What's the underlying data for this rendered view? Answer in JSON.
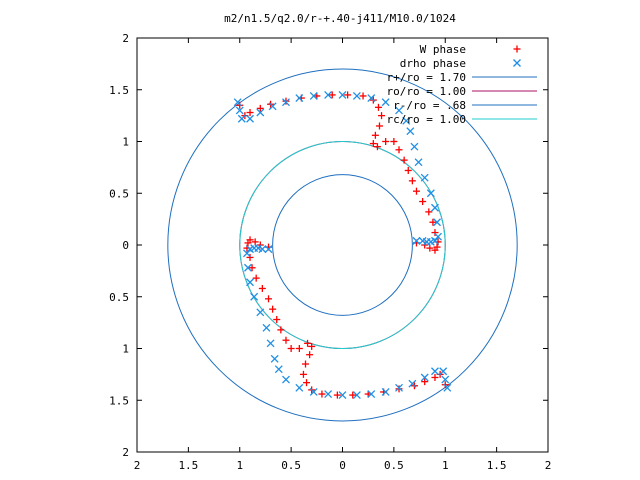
{
  "chart_data": {
    "type": "scatter",
    "title": "m2/n1.5/q2.0/r-+.40-j411/M10.0/1024",
    "xlabel": "",
    "ylabel": "",
    "xlim": [
      -2,
      2
    ],
    "ylim": [
      -2,
      2
    ],
    "x_ticks": [
      {
        "value": -2,
        "label": "2"
      },
      {
        "value": -1.5,
        "label": "1.5"
      },
      {
        "value": -1,
        "label": "1"
      },
      {
        "value": -0.5,
        "label": "0.5"
      },
      {
        "value": 0,
        "label": "0"
      },
      {
        "value": 0.5,
        "label": "0.5"
      },
      {
        "value": 1,
        "label": "1"
      },
      {
        "value": 1.5,
        "label": "1.5"
      },
      {
        "value": 2,
        "label": "2"
      }
    ],
    "y_ticks": [
      {
        "value": 2,
        "label": "2"
      },
      {
        "value": 1.5,
        "label": "1.5"
      },
      {
        "value": 1,
        "label": "1"
      },
      {
        "value": 0.5,
        "label": "0.5"
      },
      {
        "value": 0,
        "label": "0"
      },
      {
        "value": -0.5,
        "label": "0.5"
      },
      {
        "value": -1,
        "label": "1"
      },
      {
        "value": -1.5,
        "label": "1.5"
      },
      {
        "value": -2,
        "label": "2"
      }
    ],
    "grid": false,
    "legend_position": "top-right",
    "series": [
      {
        "name": "W phase",
        "kind": "points",
        "marker": "plus",
        "color": "#ff0000",
        "x": [
          -1.0,
          -0.95,
          -0.9,
          -0.8,
          -0.7,
          -0.55,
          -0.4,
          -0.25,
          -0.1,
          0.05,
          0.2,
          0.3,
          0.35,
          0.38,
          0.36,
          0.32,
          0.3,
          0.34,
          0.42,
          0.5,
          0.55,
          0.6,
          0.64,
          0.68,
          0.72,
          0.78,
          0.84,
          0.88,
          0.9,
          0.93,
          0.92,
          0.9,
          0.85,
          0.8,
          0.72,
          1.0,
          0.95,
          0.9,
          0.8,
          0.7,
          0.55,
          0.4,
          0.25,
          0.1,
          -0.05,
          -0.2,
          -0.3,
          -0.35,
          -0.38,
          -0.36,
          -0.32,
          -0.3,
          -0.34,
          -0.42,
          -0.5,
          -0.55,
          -0.6,
          -0.64,
          -0.68,
          -0.72,
          -0.78,
          -0.84,
          -0.88,
          -0.9,
          -0.93,
          -0.92,
          -0.9,
          -0.85,
          -0.8,
          -0.72
        ],
        "y": [
          1.35,
          1.25,
          1.28,
          1.32,
          1.36,
          1.39,
          1.42,
          1.44,
          1.45,
          1.45,
          1.44,
          1.4,
          1.33,
          1.25,
          1.15,
          1.06,
          0.98,
          0.95,
          1.0,
          1.0,
          0.92,
          0.82,
          0.72,
          0.62,
          0.52,
          0.42,
          0.32,
          0.22,
          0.12,
          0.03,
          -0.02,
          -0.05,
          -0.03,
          0.0,
          0.02,
          -1.35,
          -1.25,
          -1.28,
          -1.32,
          -1.36,
          -1.39,
          -1.42,
          -1.44,
          -1.45,
          -1.45,
          -1.44,
          -1.4,
          -1.33,
          -1.25,
          -1.15,
          -1.06,
          -0.98,
          -0.95,
          -1.0,
          -1.0,
          -0.92,
          -0.82,
          -0.72,
          -0.62,
          -0.52,
          -0.42,
          -0.32,
          -0.22,
          -0.12,
          -0.03,
          0.02,
          0.05,
          0.03,
          0.0,
          -0.02
        ]
      },
      {
        "name": "drho phase",
        "kind": "points",
        "marker": "cross",
        "color": "#1e8fe6",
        "x": [
          -1.02,
          -1.0,
          -0.98,
          -0.9,
          -0.8,
          -0.68,
          -0.55,
          -0.42,
          -0.28,
          -0.14,
          0.0,
          0.14,
          0.28,
          0.42,
          0.55,
          0.62,
          0.66,
          0.7,
          0.74,
          0.8,
          0.86,
          0.9,
          0.92,
          0.93,
          0.9,
          0.86,
          0.82,
          0.78,
          0.72,
          1.02,
          1.0,
          0.98,
          0.9,
          0.8,
          0.68,
          0.55,
          0.42,
          0.28,
          0.14,
          0.0,
          -0.14,
          -0.28,
          -0.42,
          -0.55,
          -0.62,
          -0.66,
          -0.7,
          -0.74,
          -0.8,
          -0.86,
          -0.9,
          -0.92,
          -0.93,
          -0.9,
          -0.86,
          -0.82,
          -0.78,
          -0.72
        ],
        "y": [
          1.38,
          1.3,
          1.22,
          1.22,
          1.28,
          1.34,
          1.38,
          1.42,
          1.44,
          1.45,
          1.45,
          1.44,
          1.42,
          1.38,
          1.3,
          1.2,
          1.1,
          0.95,
          0.8,
          0.65,
          0.5,
          0.36,
          0.22,
          0.08,
          0.04,
          0.03,
          0.03,
          0.04,
          0.04,
          -1.38,
          -1.3,
          -1.22,
          -1.22,
          -1.28,
          -1.34,
          -1.38,
          -1.42,
          -1.44,
          -1.45,
          -1.45,
          -1.44,
          -1.42,
          -1.38,
          -1.3,
          -1.2,
          -1.1,
          -0.95,
          -0.8,
          -0.65,
          -0.5,
          -0.36,
          -0.22,
          -0.08,
          -0.04,
          -0.03,
          -0.03,
          -0.04,
          -0.04
        ]
      },
      {
        "name": "r+/ro = 1.70",
        "kind": "circle",
        "radius": 1.7,
        "color": "#1f6fbf"
      },
      {
        "name": "ro/ro = 1.00",
        "kind": "circle",
        "radius": 1.0,
        "color": "#aa1166"
      },
      {
        "name": "r-/ro = .68",
        "kind": "circle",
        "radius": 0.68,
        "color": "#1f6fbf"
      },
      {
        "name": "rc/ro = 1.00",
        "kind": "circle",
        "radius": 1.0,
        "color": "#22cccc"
      }
    ]
  }
}
